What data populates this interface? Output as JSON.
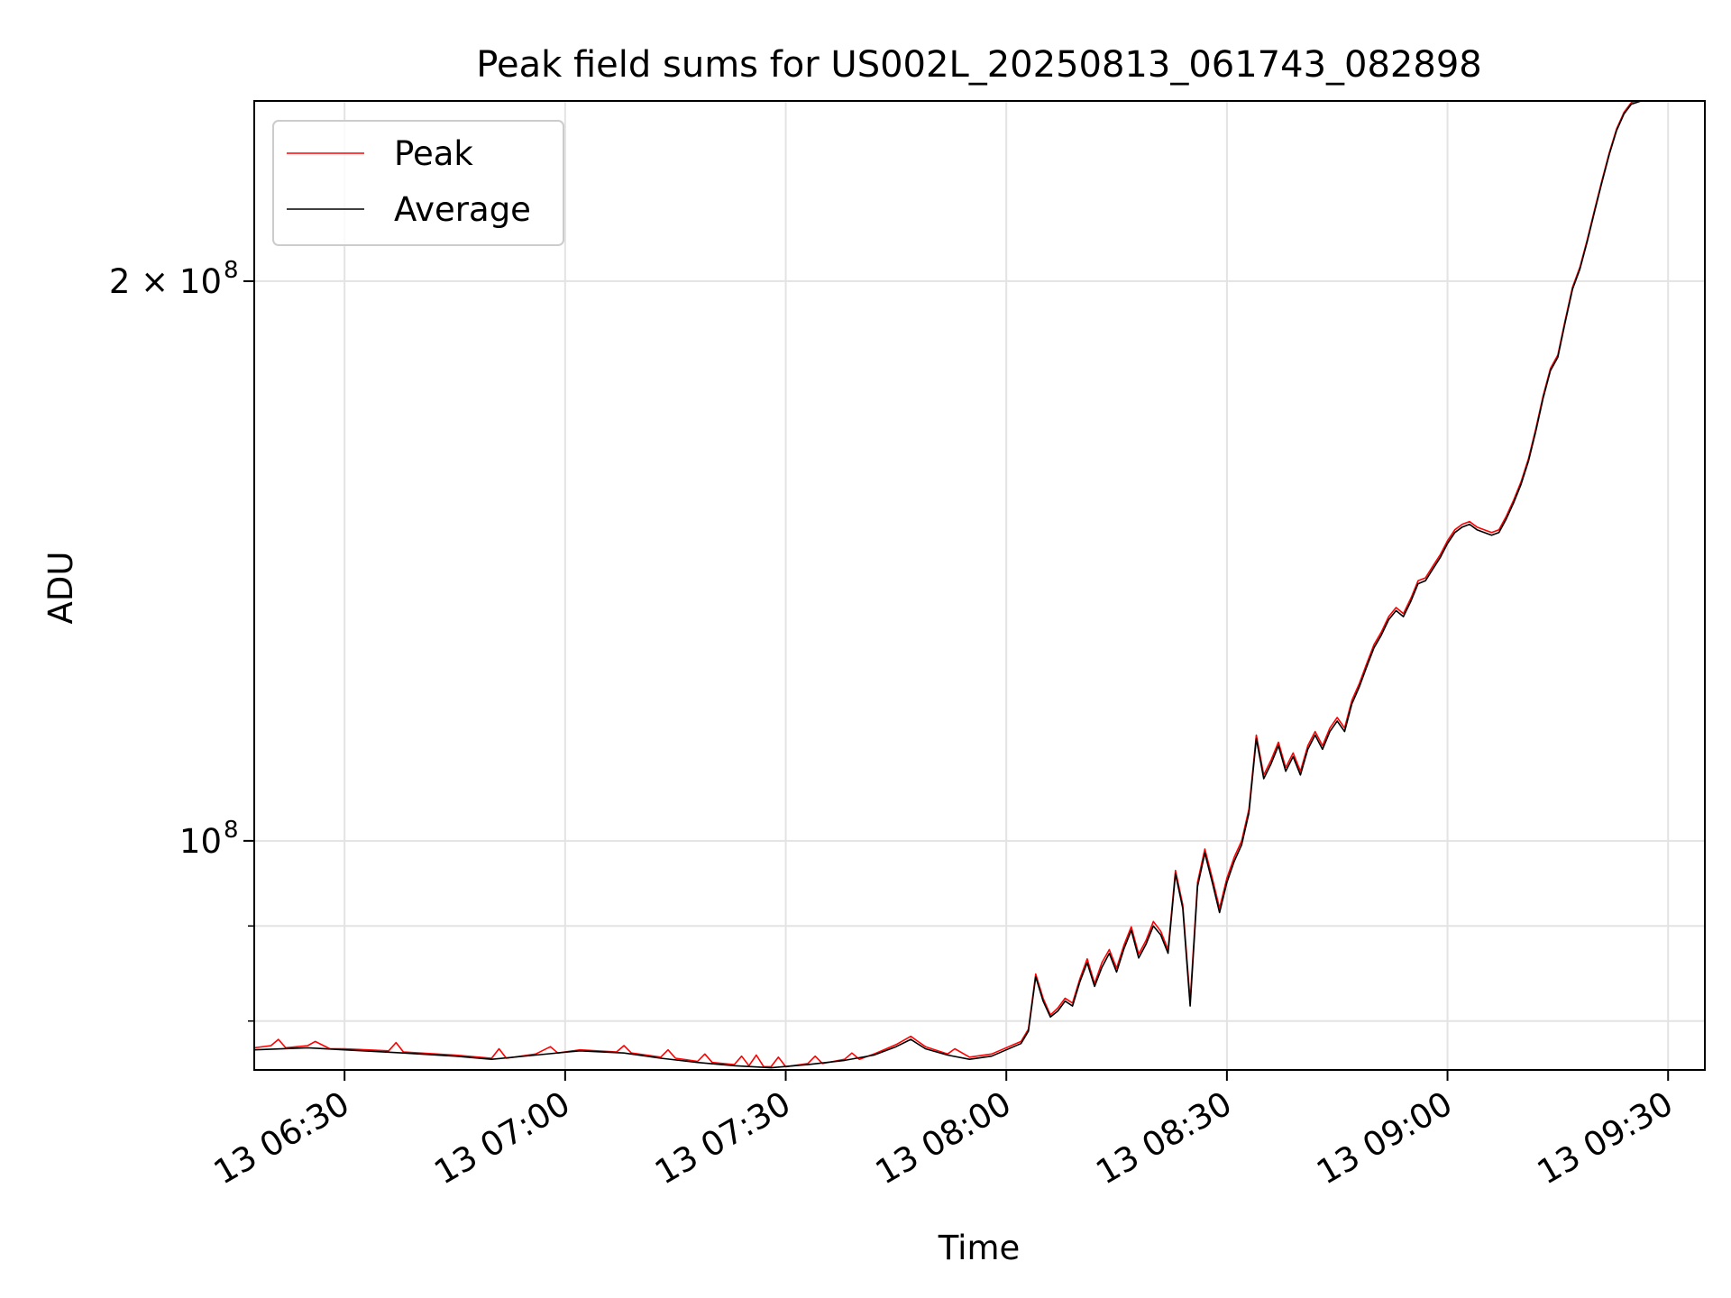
{
  "chart_data": {
    "type": "line",
    "title": "Peak field sums for US002L_20250813_061743_082898",
    "xlabel": "Time",
    "ylabel": "ADU",
    "yscale": "log",
    "grid": true,
    "legend_placement": "top-left",
    "x_range": [
      "06:17:43",
      "09:35:00"
    ],
    "y_range": [
      75300000,
      250000000
    ],
    "x_ticks": [
      {
        "time": "06:30",
        "label": "13 06:30"
      },
      {
        "time": "07:00",
        "label": "13 07:00"
      },
      {
        "time": "07:30",
        "label": "13 07:30"
      },
      {
        "time": "08:00",
        "label": "13 08:00"
      },
      {
        "time": "08:30",
        "label": "13 08:30"
      },
      {
        "time": "09:00",
        "label": "13 09:00"
      },
      {
        "time": "09:30",
        "label": "13 09:30"
      }
    ],
    "y_ticks": [
      {
        "value": 100000000,
        "label_base": "10",
        "label_exp": "8"
      },
      {
        "value": 200000000,
        "label_base": "2 × 10",
        "label_exp": "8"
      }
    ],
    "y_minor_ticks": [
      80000000,
      90000000
    ],
    "series": [
      {
        "name": "Average",
        "color": "#000000",
        "points": [
          [
            "06:17:43",
            77.2
          ],
          [
            "06:25",
            77.4
          ],
          [
            "06:30",
            77.2
          ],
          [
            "06:38",
            76.9
          ],
          [
            "06:45",
            76.6
          ],
          [
            "06:50",
            76.3
          ],
          [
            "06:56",
            76.7
          ],
          [
            "07:02",
            77.1
          ],
          [
            "07:08",
            76.9
          ],
          [
            "07:13",
            76.4
          ],
          [
            "07:18",
            76.0
          ],
          [
            "07:23",
            75.7
          ],
          [
            "07:28",
            75.5
          ],
          [
            "07:33",
            75.8
          ],
          [
            "07:38",
            76.2
          ],
          [
            "07:42",
            76.7
          ],
          [
            "07:45",
            77.5
          ],
          [
            "07:47",
            78.2
          ],
          [
            "07:49",
            77.3
          ],
          [
            "07:52",
            76.7
          ],
          [
            "07:55",
            76.3
          ],
          [
            "07:58",
            76.6
          ],
          [
            "08:02",
            77.8
          ],
          [
            "08:03",
            79.0
          ],
          [
            "08:04",
            84.5
          ],
          [
            "08:05",
            82.0
          ],
          [
            "08:06",
            80.4
          ],
          [
            "08:07",
            81.0
          ],
          [
            "08:08",
            82.0
          ],
          [
            "08:09",
            81.5
          ],
          [
            "08:10",
            84.0
          ],
          [
            "08:11",
            86.0
          ],
          [
            "08:12",
            83.5
          ],
          [
            "08:13",
            85.5
          ],
          [
            "08:14",
            87.0
          ],
          [
            "08:15",
            85.0
          ],
          [
            "08:16",
            87.5
          ],
          [
            "08:17",
            89.5
          ],
          [
            "08:18",
            86.5
          ],
          [
            "08:19",
            88.0
          ],
          [
            "08:20",
            90.0
          ],
          [
            "08:21",
            89.0
          ],
          [
            "08:22",
            87.0
          ],
          [
            "08:23",
            96.0
          ],
          [
            "08:24",
            92.0
          ],
          [
            "08:25",
            81.5
          ],
          [
            "08:26",
            94.5
          ],
          [
            "08:27",
            98.5
          ],
          [
            "08:28",
            95.0
          ],
          [
            "08:29",
            91.5
          ],
          [
            "08:30",
            95.0
          ],
          [
            "08:31",
            97.5
          ],
          [
            "08:32",
            99.5
          ],
          [
            "08:33",
            103.5
          ],
          [
            "08:34",
            113.5
          ],
          [
            "08:35",
            108.0
          ],
          [
            "08:36",
            110.0
          ],
          [
            "08:37",
            112.5
          ],
          [
            "08:38",
            109.0
          ],
          [
            "08:39",
            111.0
          ],
          [
            "08:40",
            108.5
          ],
          [
            "08:41",
            112.0
          ],
          [
            "08:42",
            114.0
          ],
          [
            "08:43",
            112.0
          ],
          [
            "08:44",
            114.5
          ],
          [
            "08:45",
            116.0
          ],
          [
            "08:46",
            114.5
          ],
          [
            "08:47",
            118.5
          ],
          [
            "08:48",
            121.0
          ],
          [
            "08:49",
            124.0
          ],
          [
            "08:50",
            127.0
          ],
          [
            "08:51",
            129.0
          ],
          [
            "08:52",
            131.5
          ],
          [
            "08:53",
            133.0
          ],
          [
            "08:54",
            132.0
          ],
          [
            "08:55",
            134.5
          ],
          [
            "08:56",
            137.5
          ],
          [
            "08:57",
            138.0
          ],
          [
            "08:58",
            140.0
          ],
          [
            "08:59",
            142.0
          ],
          [
            "09:00",
            144.5
          ],
          [
            "09:01",
            146.5
          ],
          [
            "09:02",
            147.5
          ],
          [
            "09:03",
            148.0
          ],
          [
            "09:04",
            147.0
          ],
          [
            "09:05",
            146.5
          ],
          [
            "09:06",
            146.0
          ],
          [
            "09:07",
            146.5
          ],
          [
            "09:08",
            149.0
          ],
          [
            "09:09",
            152.0
          ],
          [
            "09:10",
            155.5
          ],
          [
            "09:11",
            160.0
          ],
          [
            "09:12",
            166.0
          ],
          [
            "09:13",
            173.0
          ],
          [
            "09:14",
            179.0
          ],
          [
            "09:15",
            182.0
          ],
          [
            "09:16",
            190.0
          ],
          [
            "09:17",
            198.0
          ],
          [
            "09:18",
            203.0
          ],
          [
            "09:19",
            210.0
          ],
          [
            "09:20",
            218.0
          ],
          [
            "09:21",
            226.0
          ],
          [
            "09:22",
            234.0
          ],
          [
            "09:23",
            241.0
          ],
          [
            "09:24",
            246.0
          ],
          [
            "09:25",
            249.0
          ],
          [
            "09:27",
            250.5
          ]
        ]
      },
      {
        "name": "Peak",
        "color": "#ff0000",
        "points": [
          [
            "06:17:43",
            77.4
          ],
          [
            "06:20",
            77.6
          ],
          [
            "06:21",
            78.2
          ],
          [
            "06:22",
            77.4
          ],
          [
            "06:25",
            77.6
          ],
          [
            "06:26",
            78.0
          ],
          [
            "06:28",
            77.3
          ],
          [
            "06:30",
            77.3
          ],
          [
            "06:36",
            77.1
          ],
          [
            "06:37",
            77.9
          ],
          [
            "06:38",
            77.0
          ],
          [
            "06:45",
            76.7
          ],
          [
            "06:50",
            76.4
          ],
          [
            "06:51",
            77.3
          ],
          [
            "06:52",
            76.4
          ],
          [
            "06:56",
            76.8
          ],
          [
            "06:58",
            77.5
          ],
          [
            "06:59",
            76.9
          ],
          [
            "07:02",
            77.2
          ],
          [
            "07:07",
            77.0
          ],
          [
            "07:08",
            77.6
          ],
          [
            "07:09",
            76.9
          ],
          [
            "07:13",
            76.5
          ],
          [
            "07:14",
            77.2
          ],
          [
            "07:15",
            76.4
          ],
          [
            "07:18",
            76.1
          ],
          [
            "07:19",
            76.8
          ],
          [
            "07:20",
            76.0
          ],
          [
            "07:23",
            75.8
          ],
          [
            "07:24",
            76.6
          ],
          [
            "07:25",
            75.7
          ],
          [
            "07:26",
            76.7
          ],
          [
            "07:27",
            75.6
          ],
          [
            "07:28",
            75.6
          ],
          [
            "07:29",
            76.5
          ],
          [
            "07:30",
            75.6
          ],
          [
            "07:33",
            75.9
          ],
          [
            "07:34",
            76.6
          ],
          [
            "07:35",
            75.9
          ],
          [
            "07:38",
            76.3
          ],
          [
            "07:39",
            76.9
          ],
          [
            "07:40",
            76.3
          ],
          [
            "07:42",
            76.8
          ],
          [
            "07:45",
            77.7
          ],
          [
            "07:47",
            78.5
          ],
          [
            "07:49",
            77.5
          ],
          [
            "07:52",
            76.8
          ],
          [
            "07:53",
            77.3
          ],
          [
            "07:55",
            76.5
          ],
          [
            "07:58",
            76.8
          ],
          [
            "08:02",
            78.0
          ],
          [
            "08:03",
            79.2
          ],
          [
            "08:04",
            84.8
          ],
          [
            "08:05",
            82.3
          ],
          [
            "08:06",
            80.6
          ],
          [
            "08:07",
            81.3
          ],
          [
            "08:08",
            82.3
          ],
          [
            "08:09",
            81.8
          ],
          [
            "08:10",
            84.3
          ],
          [
            "08:11",
            86.4
          ],
          [
            "08:12",
            83.8
          ],
          [
            "08:13",
            86.0
          ],
          [
            "08:14",
            87.4
          ],
          [
            "08:15",
            85.4
          ],
          [
            "08:16",
            87.9
          ],
          [
            "08:17",
            89.9
          ],
          [
            "08:18",
            86.9
          ],
          [
            "08:19",
            88.4
          ],
          [
            "08:20",
            90.5
          ],
          [
            "08:21",
            89.4
          ],
          [
            "08:22",
            87.4
          ],
          [
            "08:23",
            96.4
          ],
          [
            "08:24",
            92.4
          ],
          [
            "08:25",
            82.0
          ],
          [
            "08:26",
            95.0
          ],
          [
            "08:27",
            99.0
          ],
          [
            "08:28",
            95.5
          ],
          [
            "08:29",
            92.0
          ],
          [
            "08:30",
            95.5
          ],
          [
            "08:31",
            98.0
          ],
          [
            "08:32",
            100.0
          ],
          [
            "08:33",
            104.0
          ],
          [
            "08:34",
            114.0
          ],
          [
            "08:35",
            108.5
          ],
          [
            "08:36",
            110.5
          ],
          [
            "08:37",
            113.0
          ],
          [
            "08:38",
            109.5
          ],
          [
            "08:39",
            111.5
          ],
          [
            "08:40",
            109.0
          ],
          [
            "08:41",
            112.5
          ],
          [
            "08:42",
            114.5
          ],
          [
            "08:43",
            112.5
          ],
          [
            "08:44",
            115.0
          ],
          [
            "08:45",
            116.5
          ],
          [
            "08:46",
            115.0
          ],
          [
            "08:47",
            119.0
          ],
          [
            "08:48",
            121.5
          ],
          [
            "08:49",
            124.5
          ],
          [
            "08:50",
            127.5
          ],
          [
            "08:51",
            129.5
          ],
          [
            "08:52",
            132.0
          ],
          [
            "08:53",
            133.5
          ],
          [
            "08:54",
            132.5
          ],
          [
            "08:55",
            135.0
          ],
          [
            "08:56",
            138.0
          ],
          [
            "08:57",
            138.5
          ],
          [
            "08:58",
            140.5
          ],
          [
            "08:59",
            142.5
          ],
          [
            "09:00",
            145.0
          ],
          [
            "09:01",
            147.0
          ],
          [
            "09:02",
            148.0
          ],
          [
            "09:03",
            148.5
          ],
          [
            "09:04",
            147.5
          ],
          [
            "09:05",
            147.0
          ],
          [
            "09:06",
            146.5
          ],
          [
            "09:07",
            147.0
          ],
          [
            "09:08",
            149.5
          ],
          [
            "09:09",
            152.5
          ],
          [
            "09:10",
            156.0
          ],
          [
            "09:11",
            160.5
          ],
          [
            "09:12",
            166.5
          ],
          [
            "09:13",
            173.5
          ],
          [
            "09:14",
            179.5
          ],
          [
            "09:15",
            182.5
          ],
          [
            "09:16",
            190.5
          ],
          [
            "09:17",
            198.5
          ],
          [
            "09:18",
            203.5
          ],
          [
            "09:19",
            210.5
          ],
          [
            "09:20",
            218.5
          ],
          [
            "09:21",
            226.5
          ],
          [
            "09:22",
            234.5
          ],
          [
            "09:23",
            241.5
          ],
          [
            "09:24",
            246.5
          ],
          [
            "09:25",
            249.5
          ],
          [
            "09:27",
            251.0
          ]
        ]
      }
    ],
    "series_value_unit": "millions of ADU",
    "legend": [
      {
        "label": "Peak",
        "color": "#ff0000"
      },
      {
        "label": "Average",
        "color": "#000000"
      }
    ]
  }
}
